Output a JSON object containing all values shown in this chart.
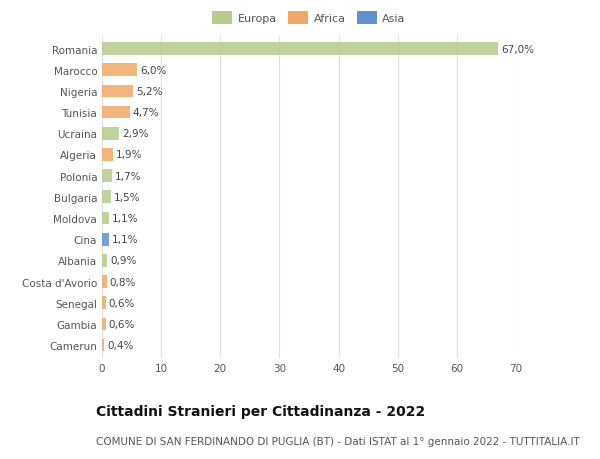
{
  "title": "Cittadini Stranieri per Cittadinanza - 2022",
  "subtitle": "COMUNE DI SAN FERDINANDO DI PUGLIA (BT) - Dati ISTAT al 1° gennaio 2022 - TUTTITALIA.IT",
  "categories": [
    "Romania",
    "Marocco",
    "Nigeria",
    "Tunisia",
    "Ucraina",
    "Algeria",
    "Polonia",
    "Bulgaria",
    "Moldova",
    "Cina",
    "Albania",
    "Costa d'Avorio",
    "Senegal",
    "Gambia",
    "Camerun"
  ],
  "values": [
    67.0,
    6.0,
    5.2,
    4.7,
    2.9,
    1.9,
    1.7,
    1.5,
    1.1,
    1.1,
    0.9,
    0.8,
    0.6,
    0.6,
    0.4
  ],
  "labels": [
    "67,0%",
    "6,0%",
    "5,2%",
    "4,7%",
    "2,9%",
    "1,9%",
    "1,7%",
    "1,5%",
    "1,1%",
    "1,1%",
    "0,9%",
    "0,8%",
    "0,6%",
    "0,6%",
    "0,4%"
  ],
  "continents": [
    "Europa",
    "Africa",
    "Africa",
    "Africa",
    "Europa",
    "Africa",
    "Europa",
    "Europa",
    "Europa",
    "Asia",
    "Europa",
    "Africa",
    "Africa",
    "Africa",
    "Africa"
  ],
  "colors": {
    "Europa": "#b5cc8e",
    "Africa": "#f0a868",
    "Asia": "#6090d0"
  },
  "xlim": [
    0,
    70
  ],
  "xticks": [
    0,
    10,
    20,
    30,
    40,
    50,
    60,
    70
  ],
  "background_color": "#ffffff",
  "grid_color": "#e0e0e0",
  "bar_height": 0.6,
  "label_fontsize": 7.5,
  "tick_fontsize": 7.5,
  "title_fontsize": 10,
  "subtitle_fontsize": 7.5
}
